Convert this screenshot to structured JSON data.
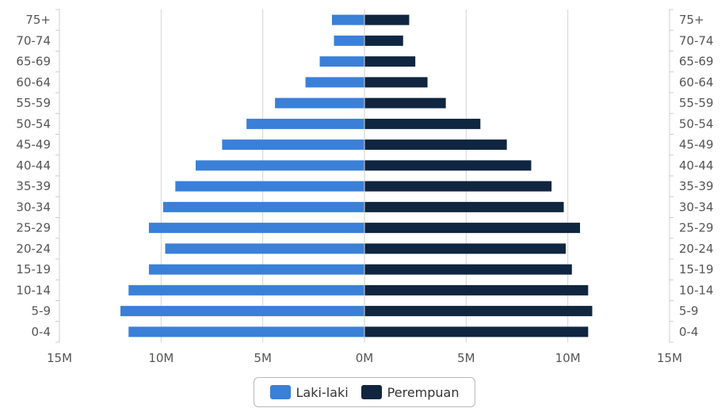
{
  "chart_data": {
    "type": "bar",
    "orientation": "horizontal",
    "categories": [
      "75+",
      "70-74",
      "65-69",
      "60-64",
      "55-59",
      "50-54",
      "45-49",
      "40-44",
      "35-39",
      "30-34",
      "25-29",
      "20-24",
      "15-19",
      "10-14",
      "5-9",
      "0-4"
    ],
    "series": [
      {
        "name": "Laki-laki",
        "color": "#3a80d8",
        "values": [
          1.6,
          1.5,
          2.2,
          2.9,
          4.4,
          5.8,
          7.0,
          8.3,
          9.3,
          9.9,
          10.6,
          9.8,
          10.6,
          11.6,
          12.0,
          11.6
        ]
      },
      {
        "name": "Perempuan",
        "color": "#0f2540",
        "values": [
          2.2,
          1.9,
          2.5,
          3.1,
          4.0,
          5.7,
          7.0,
          8.2,
          9.2,
          9.8,
          10.6,
          9.9,
          10.2,
          11.0,
          11.2,
          11.0
        ]
      }
    ],
    "xlim": [
      -15,
      15
    ],
    "x_ticks": [
      "15M",
      "10M",
      "5M",
      "0M",
      "5M",
      "10M",
      "15M"
    ],
    "grid": true,
    "legend_position": "bottom"
  }
}
